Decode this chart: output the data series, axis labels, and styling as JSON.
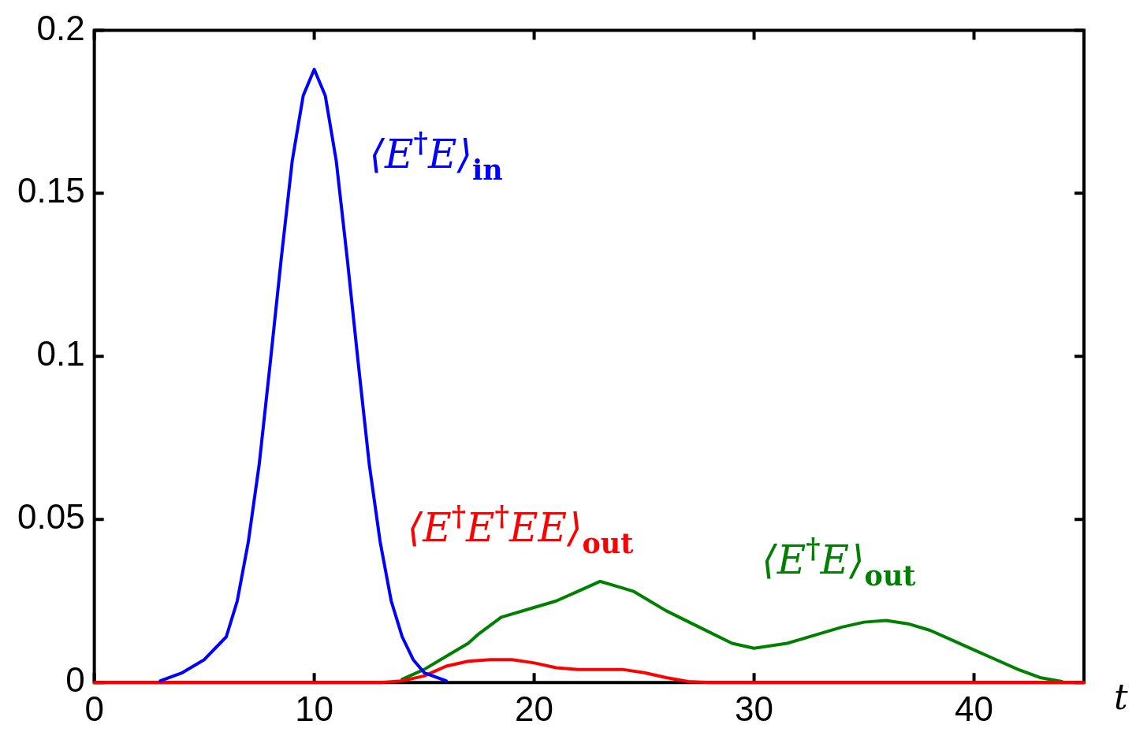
{
  "chart_data": {
    "type": "line",
    "xlabel": "t",
    "xlim": [
      0,
      45
    ],
    "xticks": [
      0,
      10,
      20,
      30,
      40
    ],
    "ylim": [
      0,
      0.2
    ],
    "yticks": [
      0,
      0.05,
      0.1,
      0.15,
      0.2
    ],
    "grid": false,
    "legend": false,
    "marker": "none",
    "line_style": "solid",
    "series": [
      {
        "name": "⟨E$^{†}$E⟩$_{in}$",
        "color": "#0000ff",
        "x": [
          3,
          4,
          5,
          6,
          6.5,
          7,
          7.5,
          8,
          8.5,
          9,
          9.5,
          10,
          10.5,
          11,
          11.5,
          12,
          12.5,
          13,
          13.5,
          14,
          14.5,
          15,
          16
        ],
        "values": [
          0.0005,
          0.003,
          0.007,
          0.014,
          0.025,
          0.043,
          0.067,
          0.098,
          0.13,
          0.16,
          0.18,
          0.188,
          0.18,
          0.16,
          0.13,
          0.098,
          0.067,
          0.043,
          0.025,
          0.014,
          0.007,
          0.003,
          0.0005
        ]
      },
      {
        "name": "⟨E$^{†}$E$^{†}$EE⟩$_{out}$",
        "color": "#ff0000",
        "x": [
          0,
          13,
          14,
          15,
          16,
          17,
          18,
          19,
          20,
          21,
          22,
          23,
          24,
          25,
          26,
          27,
          28,
          45
        ],
        "values": [
          0,
          0,
          0.0005,
          0.002,
          0.005,
          0.0065,
          0.007,
          0.007,
          0.006,
          0.0045,
          0.004,
          0.004,
          0.004,
          0.003,
          0.0015,
          0.0003,
          0,
          0
        ]
      },
      {
        "name": "⟨E$^{†}$E⟩$_{out}$",
        "color": "#008000",
        "x": [
          14,
          15,
          16,
          17,
          17.5,
          18.5,
          20,
          21,
          22,
          23,
          24,
          24.5,
          25,
          26,
          27.5,
          29,
          30,
          31.5,
          33,
          34,
          35,
          36,
          37,
          38,
          39,
          40,
          41,
          42,
          43,
          44
        ],
        "values": [
          0.001,
          0.004,
          0.008,
          0.012,
          0.015,
          0.02,
          0.023,
          0.025,
          0.028,
          0.031,
          0.029,
          0.028,
          0.026,
          0.022,
          0.017,
          0.012,
          0.0105,
          0.012,
          0.015,
          0.017,
          0.0185,
          0.019,
          0.018,
          0.016,
          0.013,
          0.01,
          0.007,
          0.004,
          0.0015,
          0.0003
        ]
      }
    ]
  }
}
